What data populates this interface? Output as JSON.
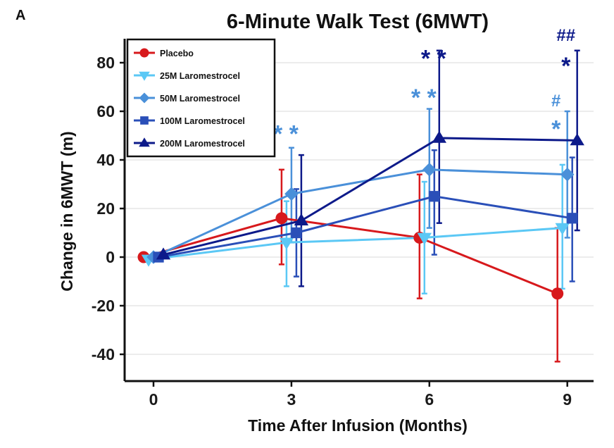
{
  "chart_data": {
    "type": "line",
    "panel_label": "A",
    "title": "6-Minute Walk Test (6MWT)",
    "xlabel": "Time After Infusion (Months)",
    "ylabel": "Change in 6MWT (m)",
    "x": [
      0,
      3,
      6,
      9
    ],
    "x_ticks": [
      "0",
      "3",
      "6",
      "9"
    ],
    "y_ticks": [
      "-40",
      "-20",
      "0",
      "20",
      "40",
      "60",
      "80"
    ],
    "y_tick_values": [
      -40,
      -20,
      0,
      20,
      40,
      60,
      80
    ],
    "xlim": [
      -0.5,
      9.6
    ],
    "ylim": [
      -50,
      90
    ],
    "grid": "horizontal",
    "legend_position": "top-left",
    "series": [
      {
        "name": "Placebo",
        "color": "#d7191c",
        "marker": "circle",
        "values": [
          0,
          16,
          8,
          -15
        ],
        "ci_lower": [
          0,
          -3,
          -17,
          -43
        ],
        "ci_upper": [
          0,
          36,
          34,
          12
        ]
      },
      {
        "name": "25M Laromestrocel",
        "color": "#5bc8f5",
        "marker": "triangle-down",
        "values": [
          -1,
          6,
          8,
          12
        ],
        "ci_lower": [
          -1,
          -12,
          -15,
          -13
        ],
        "ci_upper": [
          -1,
          23,
          31,
          38
        ]
      },
      {
        "name": "50M Laromestrocel",
        "color": "#4a90d9",
        "marker": "diamond",
        "values": [
          0,
          26,
          36,
          34
        ],
        "ci_lower": [
          0,
          6,
          12,
          8
        ],
        "ci_upper": [
          0,
          45,
          61,
          60
        ]
      },
      {
        "name": "100M Laromestrocel",
        "color": "#2a4fb8",
        "marker": "square",
        "values": [
          0,
          10,
          25,
          16
        ],
        "ci_lower": [
          0,
          -8,
          1,
          -10
        ],
        "ci_upper": [
          0,
          28,
          44,
          41
        ]
      },
      {
        "name": "200M Laromestrocel",
        "color": "#0d1a8a",
        "marker": "triangle-up",
        "values": [
          1,
          15,
          49,
          48
        ],
        "ci_lower": [
          1,
          -12,
          14,
          11
        ],
        "ci_upper": [
          1,
          42,
          85,
          85
        ]
      }
    ],
    "annotations": [
      {
        "text": "* *",
        "x": 3,
        "series": "50M Laromestrocel",
        "color": "#4a90d9",
        "y": 52
      },
      {
        "text": "* *",
        "x": 6,
        "series": "50M Laromestrocel",
        "color": "#4a90d9",
        "y": 67
      },
      {
        "text": "* *",
        "x": 6,
        "series": "200M Laromestrocel",
        "color": "#0d1a8a",
        "y": 83
      },
      {
        "text": "#",
        "x": 9,
        "series": "50M Laromestrocel",
        "color": "#4a90d9",
        "y": 62
      },
      {
        "text": "*",
        "x": 9,
        "series": "50M Laromestrocel",
        "color": "#4a90d9",
        "y": 54
      },
      {
        "text": "##",
        "x": 9,
        "series": "200M Laromestrocel",
        "color": "#0d1a8a",
        "y": 89
      },
      {
        "text": "*",
        "x": 9,
        "series": "200M Laromestrocel",
        "color": "#0d1a8a",
        "y": 80
      }
    ]
  }
}
